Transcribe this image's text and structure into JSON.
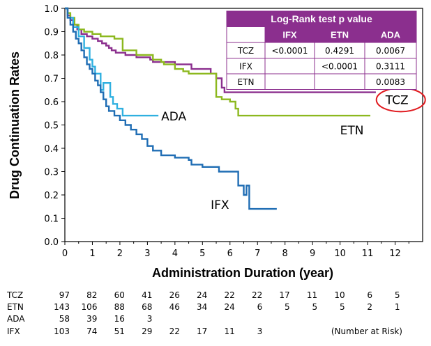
{
  "chart_data": {
    "type": "line",
    "title": "",
    "xlabel": "Administration Duration (year)",
    "ylabel": "Drug Continuation Rates",
    "xlim": [
      0,
      13
    ],
    "ylim": [
      0,
      1
    ],
    "x_ticks": [
      "0",
      "1",
      "2",
      "3",
      "4",
      "5",
      "6",
      "7",
      "8",
      "9",
      "10",
      "11",
      "12"
    ],
    "y_ticks": [
      "0.0",
      "0.1",
      "0.2",
      "0.3",
      "0.4",
      "0.5",
      "0.6",
      "0.7",
      "0.8",
      "0.9",
      "1.0"
    ],
    "grid": false,
    "series": [
      {
        "name": "TCZ",
        "color": "#8b2f8e",
        "points": [
          [
            0,
            1.0
          ],
          [
            0.1,
            0.97
          ],
          [
            0.2,
            0.95
          ],
          [
            0.3,
            0.93
          ],
          [
            0.45,
            0.91
          ],
          [
            0.6,
            0.89
          ],
          [
            0.8,
            0.88
          ],
          [
            1.0,
            0.87
          ],
          [
            1.2,
            0.86
          ],
          [
            1.35,
            0.85
          ],
          [
            1.5,
            0.84
          ],
          [
            1.6,
            0.83
          ],
          [
            1.7,
            0.82
          ],
          [
            1.85,
            0.81
          ],
          [
            2.2,
            0.8
          ],
          [
            2.6,
            0.79
          ],
          [
            3.1,
            0.78
          ],
          [
            3.2,
            0.77
          ],
          [
            4.0,
            0.76
          ],
          [
            4.6,
            0.74
          ],
          [
            5.3,
            0.72
          ],
          [
            5.5,
            0.7
          ],
          [
            5.7,
            0.66
          ],
          [
            5.8,
            0.64
          ],
          [
            11.3,
            0.64
          ]
        ]
      },
      {
        "name": "ETN",
        "color": "#8cb81e",
        "points": [
          [
            0,
            1.0
          ],
          [
            0.1,
            0.98
          ],
          [
            0.2,
            0.96
          ],
          [
            0.35,
            0.93
          ],
          [
            0.5,
            0.91
          ],
          [
            0.7,
            0.9
          ],
          [
            1.0,
            0.89
          ],
          [
            1.3,
            0.88
          ],
          [
            1.8,
            0.87
          ],
          [
            2.1,
            0.82
          ],
          [
            2.6,
            0.8
          ],
          [
            3.2,
            0.78
          ],
          [
            3.5,
            0.77
          ],
          [
            3.6,
            0.76
          ],
          [
            4.0,
            0.74
          ],
          [
            4.3,
            0.73
          ],
          [
            4.5,
            0.72
          ],
          [
            5.5,
            0.62
          ],
          [
            5.7,
            0.61
          ],
          [
            6.0,
            0.6
          ],
          [
            6.2,
            0.57
          ],
          [
            6.3,
            0.54
          ],
          [
            11.1,
            0.54
          ]
        ]
      },
      {
        "name": "ADA",
        "color": "#2fb0e0",
        "points": [
          [
            0,
            1.0
          ],
          [
            0.1,
            0.96
          ],
          [
            0.3,
            0.92
          ],
          [
            0.5,
            0.88
          ],
          [
            0.7,
            0.83
          ],
          [
            0.9,
            0.78
          ],
          [
            1.0,
            0.75
          ],
          [
            1.1,
            0.72
          ],
          [
            1.3,
            0.65
          ],
          [
            1.4,
            0.68
          ],
          [
            1.65,
            0.62
          ],
          [
            1.75,
            0.59
          ],
          [
            1.9,
            0.57
          ],
          [
            2.1,
            0.54
          ],
          [
            3.4,
            0.54
          ]
        ]
      },
      {
        "name": "IFX",
        "color": "#1f6db4",
        "points": [
          [
            0,
            1.0
          ],
          [
            0.1,
            0.96
          ],
          [
            0.2,
            0.93
          ],
          [
            0.3,
            0.9
          ],
          [
            0.4,
            0.87
          ],
          [
            0.5,
            0.85
          ],
          [
            0.6,
            0.82
          ],
          [
            0.7,
            0.79
          ],
          [
            0.8,
            0.76
          ],
          [
            0.9,
            0.74
          ],
          [
            1.0,
            0.72
          ],
          [
            1.1,
            0.69
          ],
          [
            1.2,
            0.67
          ],
          [
            1.3,
            0.64
          ],
          [
            1.4,
            0.61
          ],
          [
            1.5,
            0.58
          ],
          [
            1.6,
            0.56
          ],
          [
            1.8,
            0.54
          ],
          [
            2.0,
            0.52
          ],
          [
            2.2,
            0.5
          ],
          [
            2.4,
            0.48
          ],
          [
            2.6,
            0.46
          ],
          [
            2.8,
            0.44
          ],
          [
            3.0,
            0.41
          ],
          [
            3.2,
            0.39
          ],
          [
            3.5,
            0.37
          ],
          [
            4.0,
            0.36
          ],
          [
            4.5,
            0.35
          ],
          [
            4.6,
            0.33
          ],
          [
            5.0,
            0.32
          ],
          [
            5.6,
            0.3
          ],
          [
            6.3,
            0.24
          ],
          [
            6.5,
            0.2
          ],
          [
            6.6,
            0.24
          ],
          [
            6.7,
            0.14
          ],
          [
            7.7,
            0.14
          ]
        ]
      }
    ],
    "series_labels": [
      {
        "text": "ADA",
        "x": 3.5,
        "y": 0.52
      },
      {
        "text": "ETN",
        "x": 10.0,
        "y": 0.46
      },
      {
        "text": "IFX",
        "x": 5.3,
        "y": 0.14
      },
      {
        "text": "TCZ",
        "x": 11.65,
        "y": 0.59
      }
    ],
    "logrank_table": {
      "title": "Log-Rank test p value",
      "columns": [
        "",
        "IFX",
        "ETN",
        "ADA"
      ],
      "rows": [
        [
          "TCZ",
          "<0.0001",
          "0.4291",
          "0.0067"
        ],
        [
          "IFX",
          "",
          "<0.0001",
          "0.3111"
        ],
        [
          "ETN",
          "",
          "",
          "0.0083"
        ]
      ]
    },
    "number_at_risk": {
      "note": "(Number at Risk)",
      "rows": [
        {
          "name": "TCZ",
          "counts": [
            "97",
            "82",
            "60",
            "41",
            "26",
            "24",
            "22",
            "22",
            "17",
            "11",
            "10",
            "6",
            "5"
          ]
        },
        {
          "name": "ETN",
          "counts": [
            "143",
            "106",
            "88",
            "68",
            "46",
            "34",
            "24",
            "6",
            "5",
            "5",
            "5",
            "2",
            "1"
          ]
        },
        {
          "name": "ADA",
          "counts": [
            "58",
            "39",
            "16",
            "3"
          ]
        },
        {
          "name": "IFX",
          "counts": [
            "103",
            "74",
            "51",
            "29",
            "22",
            "17",
            "11",
            "3"
          ]
        }
      ]
    },
    "highlight": {
      "series": "TCZ",
      "shape": "ellipse",
      "color": "#e0191e"
    },
    "colors": {
      "axis": "#000000",
      "table_header": "#8b2f8e",
      "table_border": "#8b2f8e"
    }
  }
}
